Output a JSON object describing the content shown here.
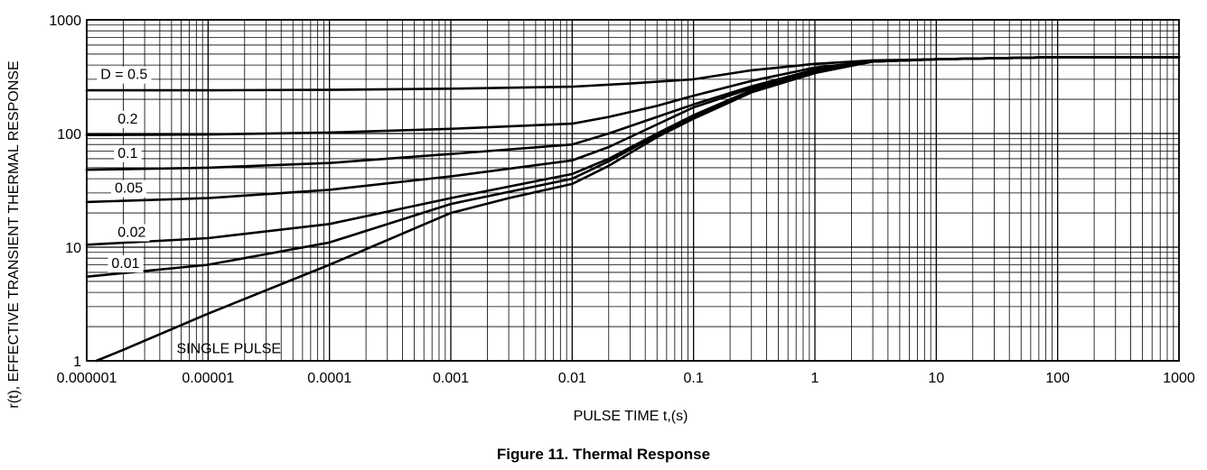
{
  "figure_caption": "Figure 11. Thermal Response",
  "chart_data": {
    "type": "line",
    "title": "",
    "xlabel": "PULSE TIME t,(s)",
    "ylabel": "r(t), EFFECTIVE TRANSIENT THERMAL RESPONSE",
    "xscale": "log",
    "yscale": "log",
    "xlim": [
      1e-06,
      1000
    ],
    "ylim": [
      1,
      1000
    ],
    "grid": true,
    "x_tick_labels": [
      "0.000001",
      "0.00001",
      "0.0001",
      "0.001",
      "0.01",
      "0.1",
      "1",
      "10",
      "100",
      "1000"
    ],
    "y_tick_labels": [
      "1",
      "10",
      "100",
      "1000"
    ],
    "series": [
      {
        "name": "D = 0.5",
        "x": [
          1e-06,
          1e-05,
          0.0001,
          0.001,
          0.01,
          0.03,
          0.1,
          0.3,
          1,
          3,
          10,
          100,
          1000
        ],
        "y": [
          240,
          240,
          242,
          248,
          258,
          275,
          300,
          360,
          410,
          440,
          450,
          470,
          470
        ]
      },
      {
        "name": "0.2",
        "x": [
          1e-06,
          1e-05,
          0.0001,
          0.001,
          0.01,
          0.02,
          0.05,
          0.1,
          0.3,
          1,
          3,
          10,
          100,
          1000
        ],
        "y": [
          97,
          98,
          102,
          110,
          122,
          140,
          175,
          215,
          290,
          380,
          430,
          450,
          470,
          470
        ]
      },
      {
        "name": "0.1",
        "x": [
          1e-06,
          1e-05,
          0.0001,
          0.001,
          0.01,
          0.02,
          0.05,
          0.1,
          0.3,
          1,
          3,
          10,
          100,
          1000
        ],
        "y": [
          48,
          50,
          55,
          66,
          80,
          100,
          140,
          180,
          260,
          365,
          430,
          450,
          470,
          470
        ]
      },
      {
        "name": "0.05",
        "x": [
          1e-06,
          1e-05,
          0.0001,
          0.001,
          0.01,
          0.02,
          0.05,
          0.1,
          0.3,
          1,
          3,
          10,
          100,
          1000
        ],
        "y": [
          25,
          27,
          32,
          42,
          58,
          76,
          120,
          170,
          250,
          360,
          430,
          450,
          470,
          470
        ]
      },
      {
        "name": "0.02",
        "x": [
          1e-06,
          1e-05,
          0.0001,
          0.001,
          0.01,
          0.02,
          0.05,
          0.1,
          0.3,
          1,
          3,
          10,
          100,
          1000
        ],
        "y": [
          10.5,
          12,
          16,
          27,
          44,
          60,
          100,
          145,
          240,
          350,
          430,
          450,
          470,
          470
        ]
      },
      {
        "name": "0.01",
        "x": [
          1e-06,
          1e-05,
          0.0001,
          0.001,
          0.01,
          0.02,
          0.05,
          0.1,
          0.3,
          1,
          3,
          10,
          100,
          1000
        ],
        "y": [
          5.5,
          7,
          11,
          24,
          40,
          57,
          97,
          140,
          235,
          345,
          430,
          450,
          470,
          470
        ]
      },
      {
        "name": "SINGLE PULSE",
        "x": [
          1.2e-06,
          2e-06,
          1e-05,
          0.0001,
          0.001,
          0.003,
          0.01,
          0.02,
          0.05,
          0.1,
          0.3,
          1,
          3,
          10,
          100,
          1000
        ],
        "y": [
          1,
          1.25,
          2.6,
          7,
          20,
          27,
          36,
          52,
          93,
          135,
          230,
          340,
          430,
          450,
          470,
          470
        ]
      }
    ]
  }
}
